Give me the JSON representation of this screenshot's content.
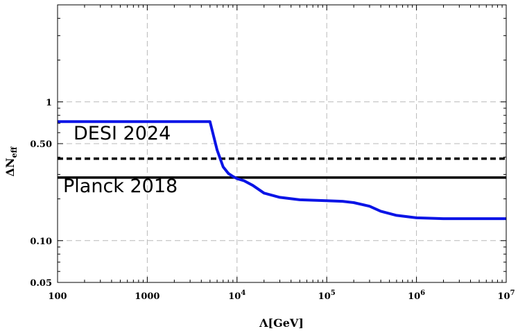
{
  "chart_data": {
    "type": "line",
    "xscale": "log",
    "yscale": "log",
    "xlim": [
      100,
      10000000
    ],
    "ylim": [
      0.05,
      5
    ],
    "grid": true,
    "xlabel": "Λ[GeV]",
    "ylabel": {
      "main": "ΔN",
      "sub": "eff"
    },
    "xticks": [
      {
        "value": 100,
        "label": "100"
      },
      {
        "value": 1000,
        "label": "1000"
      },
      {
        "value": 10000,
        "base": "10",
        "exp": "4"
      },
      {
        "value": 100000,
        "base": "10",
        "exp": "5"
      },
      {
        "value": 1000000,
        "base": "10",
        "exp": "6"
      },
      {
        "value": 10000000,
        "base": "10",
        "exp": "7"
      }
    ],
    "yticks": [
      {
        "value": 0.05,
        "label": "0.05"
      },
      {
        "value": 0.1,
        "label": "0.10"
      },
      {
        "value": 0.5,
        "label": "0.50"
      },
      {
        "value": 1,
        "label": "1"
      }
    ],
    "series": [
      {
        "color": "#0a14e6",
        "x": [
          100,
          5000,
          6000,
          7000,
          8000,
          9000,
          10000,
          12000,
          15000,
          20000,
          30000,
          50000,
          100000,
          150000,
          200000,
          300000,
          400000,
          600000,
          1000000,
          2000000,
          5000000,
          10000000
        ],
        "y": [
          0.72,
          0.72,
          0.45,
          0.34,
          0.305,
          0.29,
          0.28,
          0.27,
          0.25,
          0.22,
          0.205,
          0.197,
          0.194,
          0.192,
          0.188,
          0.177,
          0.163,
          0.152,
          0.146,
          0.144,
          0.144,
          0.144
        ]
      }
    ],
    "hlines": [
      {
        "y": 0.39,
        "style": "dashed",
        "color": "#000000",
        "label": "DESI 2024"
      },
      {
        "y": 0.285,
        "style": "solid",
        "color": "#000000",
        "label": "Planck 2018"
      }
    ]
  }
}
